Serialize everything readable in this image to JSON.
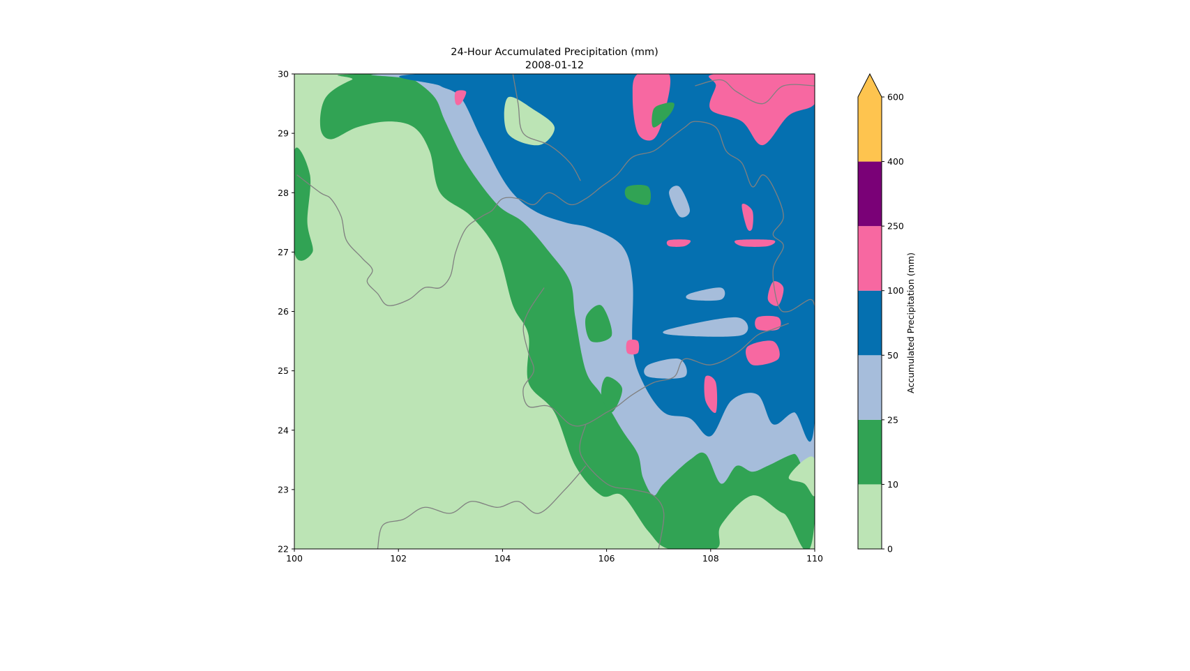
{
  "chart_data": {
    "type": "heatmap",
    "title": "24-Hour Accumulated Precipitation (mm)",
    "subtitle": "2008-01-12",
    "xlim": [
      100,
      110
    ],
    "ylim": [
      22,
      30
    ],
    "xticks": [
      "100",
      "102",
      "104",
      "106",
      "108",
      "110"
    ],
    "yticks": [
      "22",
      "23",
      "24",
      "25",
      "26",
      "27",
      "28",
      "29",
      "30"
    ],
    "colorbar": {
      "label": "Accumulated Precipitation (mm)",
      "levels": [
        0,
        10,
        25,
        50,
        100,
        250,
        400,
        600
      ],
      "tick_labels": [
        "0",
        "10",
        "25",
        "50",
        "100",
        "250",
        "400",
        "600"
      ],
      "colors": [
        "#bce4b5",
        "#31a354",
        "#a6bddb",
        "#0570b0",
        "#f768a1",
        "#7a0177",
        "#fec44f"
      ],
      "extend": "max"
    },
    "regions": [
      {
        "range_mm": "0-10",
        "color": "#bce4b5",
        "points": [
          [
            100,
            22
          ],
          [
            110,
            22
          ],
          [
            110,
            30
          ],
          [
            100,
            30
          ]
        ]
      },
      {
        "range_mm": "10-25",
        "color": "#31a354",
        "points": [
          [
            101.6,
            30
          ],
          [
            110,
            30
          ],
          [
            110,
            22.5
          ],
          [
            109.4,
            22.6
          ],
          [
            108.8,
            22.9
          ],
          [
            108.2,
            22.4
          ],
          [
            108.1,
            22
          ],
          [
            107.2,
            22
          ],
          [
            106.8,
            22.3
          ],
          [
            106.3,
            22.9
          ],
          [
            105.9,
            22.9
          ],
          [
            105.4,
            23.4
          ],
          [
            105,
            24.3
          ],
          [
            104.5,
            24.8
          ],
          [
            104.5,
            25.6
          ],
          [
            104.2,
            26.1
          ],
          [
            103.9,
            27
          ],
          [
            103.4,
            27.6
          ],
          [
            102.8,
            28
          ],
          [
            102.6,
            28.7
          ],
          [
            102.3,
            29.1
          ],
          [
            101.8,
            29.2
          ],
          [
            101.2,
            29.1
          ],
          [
            100.7,
            28.9
          ],
          [
            100.5,
            29.1
          ],
          [
            100.6,
            29.6
          ],
          [
            101.1,
            29.9
          ]
        ]
      },
      {
        "range_mm": "10-25",
        "color": "#31a354",
        "points": [
          [
            100,
            28.7
          ],
          [
            100.3,
            28.3
          ],
          [
            100.25,
            27.5
          ],
          [
            100.35,
            27
          ],
          [
            100,
            27
          ]
        ]
      },
      {
        "range_mm": "25-50",
        "color": "#a6bddb",
        "points": [
          [
            102,
            30
          ],
          [
            110,
            30
          ],
          [
            110,
            23.6
          ],
          [
            109.6,
            23.6
          ],
          [
            109.1,
            23.4
          ],
          [
            108.8,
            23.3
          ],
          [
            108.5,
            23.4
          ],
          [
            108.2,
            23.1
          ],
          [
            107.9,
            23.6
          ],
          [
            107.6,
            23.5
          ],
          [
            107.1,
            23.1
          ],
          [
            106.9,
            22.9
          ],
          [
            106.7,
            23.2
          ],
          [
            106.6,
            23.6
          ],
          [
            106.3,
            24
          ],
          [
            105.9,
            24.6
          ],
          [
            105.6,
            25
          ],
          [
            105.4,
            25.9
          ],
          [
            105.3,
            26.5
          ],
          [
            104.9,
            27
          ],
          [
            104.4,
            27.5
          ],
          [
            103.9,
            27.8
          ],
          [
            103.3,
            28.5
          ],
          [
            102.9,
            29.2
          ],
          [
            102.7,
            29.6
          ],
          [
            102.3,
            29.9
          ]
        ]
      },
      {
        "range_mm": "50-100",
        "color": "#0570b0",
        "points": [
          [
            102.5,
            30
          ],
          [
            110,
            30
          ],
          [
            110,
            24.2
          ],
          [
            109.6,
            24.3
          ],
          [
            109.2,
            24.1
          ],
          [
            108.9,
            24.6
          ],
          [
            108.4,
            24.5
          ],
          [
            108,
            23.9
          ],
          [
            107.6,
            24.2
          ],
          [
            107.1,
            24.3
          ],
          [
            106.7,
            24.8
          ],
          [
            106.5,
            25.4
          ],
          [
            106.5,
            26.5
          ],
          [
            106.3,
            27.1
          ],
          [
            105.7,
            27.4
          ],
          [
            105.2,
            27.5
          ],
          [
            104.6,
            27.7
          ],
          [
            104.1,
            28.1
          ],
          [
            103.6,
            28.9
          ],
          [
            103.2,
            29.6
          ],
          [
            102.8,
            29.8
          ]
        ]
      },
      {
        "range_mm": "100-250",
        "color": "#f768a1",
        "points": [
          [
            106.6,
            30
          ],
          [
            107.2,
            30
          ],
          [
            107.1,
            29.3
          ],
          [
            106.9,
            28.9
          ],
          [
            106.6,
            29
          ],
          [
            106.5,
            29.6
          ]
        ]
      },
      {
        "range_mm": "100-250",
        "color": "#f768a1",
        "points": [
          [
            108.1,
            30
          ],
          [
            110,
            30
          ],
          [
            110,
            29.5
          ],
          [
            109.5,
            29.3
          ],
          [
            109,
            28.8
          ],
          [
            108.6,
            29.2
          ],
          [
            108,
            29.4
          ],
          [
            108.1,
            29.8
          ]
        ]
      },
      {
        "range_mm": "100-250",
        "color": "#f768a1",
        "points": [
          [
            109.2,
            26.5
          ],
          [
            109.4,
            26.4
          ],
          [
            109.3,
            26.1
          ],
          [
            109.1,
            26.2
          ]
        ]
      },
      {
        "range_mm": "100-250",
        "color": "#f768a1",
        "points": [
          [
            108.7,
            25.4
          ],
          [
            109.2,
            25.5
          ],
          [
            109.3,
            25.2
          ],
          [
            108.8,
            25.1
          ]
        ]
      },
      {
        "range_mm": "100-250",
        "color": "#f768a1",
        "points": [
          [
            107.9,
            24.9
          ],
          [
            108.1,
            24.8
          ],
          [
            108.1,
            24.3
          ],
          [
            107.9,
            24.5
          ]
        ]
      },
      {
        "range_mm": "100-250",
        "color": "#f768a1",
        "points": [
          [
            108.6,
            27.8
          ],
          [
            108.8,
            27.7
          ],
          [
            108.8,
            27.4
          ],
          [
            108.7,
            27.4
          ]
        ]
      },
      {
        "range_mm": "100-250",
        "color": "#f768a1",
        "points": [
          [
            107.2,
            27.2
          ],
          [
            107.6,
            27.2
          ],
          [
            107.5,
            27.1
          ],
          [
            107.2,
            27.1
          ]
        ]
      },
      {
        "range_mm": "100-250",
        "color": "#f768a1",
        "points": [
          [
            108.5,
            27.2
          ],
          [
            109.2,
            27.2
          ],
          [
            109.1,
            27.1
          ],
          [
            108.6,
            27.1
          ]
        ]
      },
      {
        "range_mm": "100-250",
        "color": "#f768a1",
        "points": [
          [
            103.1,
            29.7
          ],
          [
            103.3,
            29.7
          ],
          [
            103.2,
            29.5
          ],
          [
            103.1,
            29.5
          ]
        ]
      },
      {
        "range_mm": "100-250",
        "color": "#f768a1",
        "points": [
          [
            106.4,
            25.5
          ],
          [
            106.6,
            25.5
          ],
          [
            106.6,
            25.3
          ],
          [
            106.4,
            25.3
          ]
        ]
      },
      {
        "range_mm": "100-250",
        "color": "#f768a1",
        "points": [
          [
            108.9,
            25.9
          ],
          [
            109.3,
            25.9
          ],
          [
            109.3,
            25.7
          ],
          [
            108.9,
            25.7
          ]
        ]
      },
      {
        "range_mm": "0-10",
        "color": "#bce4b5",
        "points": [
          [
            104.1,
            29.6
          ],
          [
            104.6,
            29.4
          ],
          [
            105,
            29.1
          ],
          [
            104.7,
            28.8
          ],
          [
            104.1,
            29
          ]
        ]
      },
      {
        "range_mm": "0-10",
        "color": "#bce4b5",
        "points": [
          [
            110,
            22.9
          ],
          [
            109.8,
            23.1
          ],
          [
            109.5,
            23.2
          ],
          [
            109.8,
            23.5
          ],
          [
            110,
            23.5
          ]
        ]
      },
      {
        "range_mm": "10-25",
        "color": "#31a354",
        "points": [
          [
            107.3,
            29.5
          ],
          [
            107.2,
            29.3
          ],
          [
            106.9,
            29.1
          ],
          [
            106.9,
            29.4
          ],
          [
            107.1,
            29.5
          ]
        ]
      },
      {
        "range_mm": "10-25",
        "color": "#31a354",
        "points": [
          [
            106.4,
            28.1
          ],
          [
            106.8,
            28.1
          ],
          [
            106.8,
            27.8
          ],
          [
            106.4,
            27.9
          ]
        ]
      },
      {
        "range_mm": "10-25",
        "color": "#31a354",
        "points": [
          [
            105.9,
            26.1
          ],
          [
            106.1,
            25.6
          ],
          [
            105.7,
            25.5
          ],
          [
            105.6,
            25.9
          ]
        ]
      },
      {
        "range_mm": "10-25",
        "color": "#31a354",
        "points": [
          [
            106,
            24.9
          ],
          [
            106.3,
            24.7
          ],
          [
            106.1,
            24.3
          ],
          [
            105.9,
            24.6
          ]
        ]
      },
      {
        "range_mm": "25-50",
        "color": "#a6bddb",
        "points": [
          [
            107.2,
            28
          ],
          [
            107.4,
            28.1
          ],
          [
            107.6,
            27.7
          ],
          [
            107.4,
            27.6
          ]
        ]
      },
      {
        "range_mm": "25-50",
        "color": "#a6bddb",
        "points": [
          [
            107.6,
            26.3
          ],
          [
            108.2,
            26.4
          ],
          [
            108.2,
            26.2
          ],
          [
            107.6,
            26.2
          ]
        ]
      },
      {
        "range_mm": "25-50",
        "color": "#a6bddb",
        "points": [
          [
            107.2,
            25.7
          ],
          [
            108.5,
            25.9
          ],
          [
            108.6,
            25.6
          ],
          [
            107.3,
            25.6
          ]
        ]
      },
      {
        "range_mm": "25-50",
        "color": "#a6bddb",
        "points": [
          [
            106.8,
            25.1
          ],
          [
            107.4,
            25.2
          ],
          [
            107.5,
            24.9
          ],
          [
            106.8,
            24.9
          ]
        ]
      }
    ],
    "boundaries": [
      [
        [
          100.05,
          28.3
        ],
        [
          100.5,
          28
        ],
        [
          100.7,
          27.9
        ],
        [
          100.9,
          27.6
        ],
        [
          101,
          27.2
        ],
        [
          101.3,
          26.9
        ],
        [
          101.5,
          26.7
        ],
        [
          101.4,
          26.5
        ],
        [
          101.6,
          26.3
        ],
        [
          101.8,
          26.1
        ],
        [
          102.2,
          26.2
        ],
        [
          102.5,
          26.4
        ],
        [
          102.8,
          26.4
        ],
        [
          103,
          26.6
        ],
        [
          103.1,
          27
        ],
        [
          103.3,
          27.4
        ],
        [
          103.6,
          27.6
        ],
        [
          103.8,
          27.7
        ],
        [
          104,
          27.9
        ],
        [
          104.3,
          27.9
        ],
        [
          104.6,
          27.8
        ],
        [
          104.9,
          28
        ],
        [
          105.3,
          27.8
        ],
        [
          105.6,
          27.9
        ],
        [
          105.9,
          28.1
        ],
        [
          106.2,
          28.3
        ],
        [
          106.5,
          28.6
        ],
        [
          106.9,
          28.7
        ],
        [
          107.2,
          28.9
        ],
        [
          107.5,
          29.1
        ],
        [
          107.7,
          29.2
        ],
        [
          108.1,
          29.1
        ],
        [
          108.3,
          28.7
        ],
        [
          108.6,
          28.5
        ],
        [
          108.8,
          28.1
        ],
        [
          109,
          28.3
        ],
        [
          109.2,
          28.1
        ],
        [
          109.4,
          27.6
        ],
        [
          109.2,
          27.3
        ],
        [
          109.4,
          27.1
        ],
        [
          109.2,
          26.7
        ],
        [
          109.3,
          26.1
        ],
        [
          109.5,
          26
        ],
        [
          109.9,
          26.2
        ],
        [
          110,
          26.1
        ]
      ],
      [
        [
          104.8,
          26.4
        ],
        [
          104.5,
          26
        ],
        [
          104.4,
          25.7
        ],
        [
          104.5,
          25.3
        ],
        [
          104.6,
          25
        ],
        [
          104.4,
          24.7
        ],
        [
          104.5,
          24.4
        ],
        [
          104.9,
          24.4
        ],
        [
          105.3,
          24.1
        ],
        [
          105.6,
          24.1
        ],
        [
          106,
          24.3
        ],
        [
          106.2,
          24.4
        ],
        [
          106.5,
          24.6
        ],
        [
          106.9,
          24.8
        ],
        [
          107.3,
          24.9
        ],
        [
          107.5,
          25.2
        ],
        [
          108,
          25.1
        ],
        [
          108.5,
          25.3
        ],
        [
          108.9,
          25.6
        ],
        [
          109.2,
          25.7
        ],
        [
          109.5,
          25.8
        ]
      ],
      [
        [
          105.6,
          24.1
        ],
        [
          105.5,
          23.6
        ],
        [
          106,
          23.1
        ],
        [
          106.5,
          23
        ],
        [
          106.9,
          22.9
        ],
        [
          107.1,
          22.6
        ],
        [
          107,
          22
        ]
      ],
      [
        [
          101.6,
          22
        ],
        [
          101.7,
          22.4
        ],
        [
          102.1,
          22.5
        ],
        [
          102.5,
          22.7
        ],
        [
          103,
          22.6
        ],
        [
          103.4,
          22.8
        ],
        [
          103.9,
          22.7
        ],
        [
          104.3,
          22.8
        ],
        [
          104.7,
          22.6
        ],
        [
          105.2,
          23
        ],
        [
          105.6,
          23.4
        ]
      ],
      [
        [
          104.2,
          30
        ],
        [
          104.3,
          29.5
        ],
        [
          104.4,
          29
        ],
        [
          104.9,
          28.8
        ],
        [
          105.3,
          28.5
        ],
        [
          105.5,
          28.2
        ]
      ],
      [
        [
          107.7,
          29.8
        ],
        [
          108.2,
          29.9
        ],
        [
          108.5,
          29.7
        ],
        [
          109,
          29.5
        ],
        [
          109.4,
          29.8
        ],
        [
          110,
          29.8
        ]
      ]
    ]
  }
}
